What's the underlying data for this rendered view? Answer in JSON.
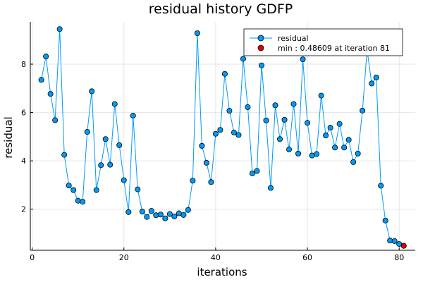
{
  "chart_data": {
    "type": "scatter",
    "title": "residual history GDFP",
    "xlabel": "iterations",
    "ylabel": "residual",
    "xlim": [
      -0.4,
      83.5
    ],
    "ylim": [
      0.3,
      9.75
    ],
    "xticks": [
      0,
      20,
      40,
      60,
      80
    ],
    "yticks": [
      2,
      4,
      6,
      8
    ],
    "grid": true,
    "legend_position": "top-right",
    "series": [
      {
        "name": "residual",
        "color": "#009af9",
        "marker": "circle",
        "line": true,
        "x": [
          2,
          3,
          4,
          5,
          6,
          7,
          8,
          9,
          10,
          11,
          12,
          13,
          14,
          15,
          16,
          17,
          18,
          19,
          20,
          21,
          22,
          23,
          24,
          25,
          26,
          27,
          28,
          29,
          30,
          31,
          32,
          33,
          34,
          35,
          36,
          37,
          38,
          39,
          40,
          41,
          42,
          43,
          44,
          45,
          46,
          47,
          48,
          49,
          50,
          51,
          52,
          53,
          54,
          55,
          56,
          57,
          58,
          59,
          60,
          61,
          62,
          63,
          64,
          65,
          66,
          67,
          68,
          69,
          70,
          71,
          72,
          73,
          74,
          75,
          76,
          77,
          78,
          79,
          80,
          81
        ],
        "y": [
          7.35,
          8.32,
          6.77,
          5.68,
          9.45,
          4.25,
          2.98,
          2.79,
          2.35,
          2.31,
          5.2,
          6.88,
          2.79,
          3.82,
          4.9,
          3.84,
          6.35,
          4.65,
          3.2,
          1.88,
          5.87,
          2.82,
          1.9,
          1.68,
          1.93,
          1.75,
          1.78,
          1.62,
          1.8,
          1.7,
          1.83,
          1.76,
          1.97,
          3.18,
          9.28,
          4.62,
          3.92,
          3.12,
          5.12,
          5.28,
          7.6,
          6.07,
          5.17,
          5.07,
          8.22,
          6.22,
          3.48,
          3.58,
          7.95,
          5.67,
          2.88,
          6.3,
          4.9,
          5.7,
          4.47,
          6.35,
          4.3,
          8.2,
          5.57,
          4.22,
          4.28,
          6.7,
          5.05,
          5.37,
          4.55,
          5.53,
          4.55,
          4.87,
          3.95,
          4.3,
          6.08,
          8.6,
          7.2,
          7.45,
          2.97,
          1.53,
          0.7,
          0.68,
          0.56,
          0.48609
        ]
      },
      {
        "name": "min : 0.48609 at iteration 81",
        "color": "#e00000",
        "marker": "circle",
        "line": false,
        "x": [
          81
        ],
        "y": [
          0.48609
        ]
      }
    ]
  }
}
